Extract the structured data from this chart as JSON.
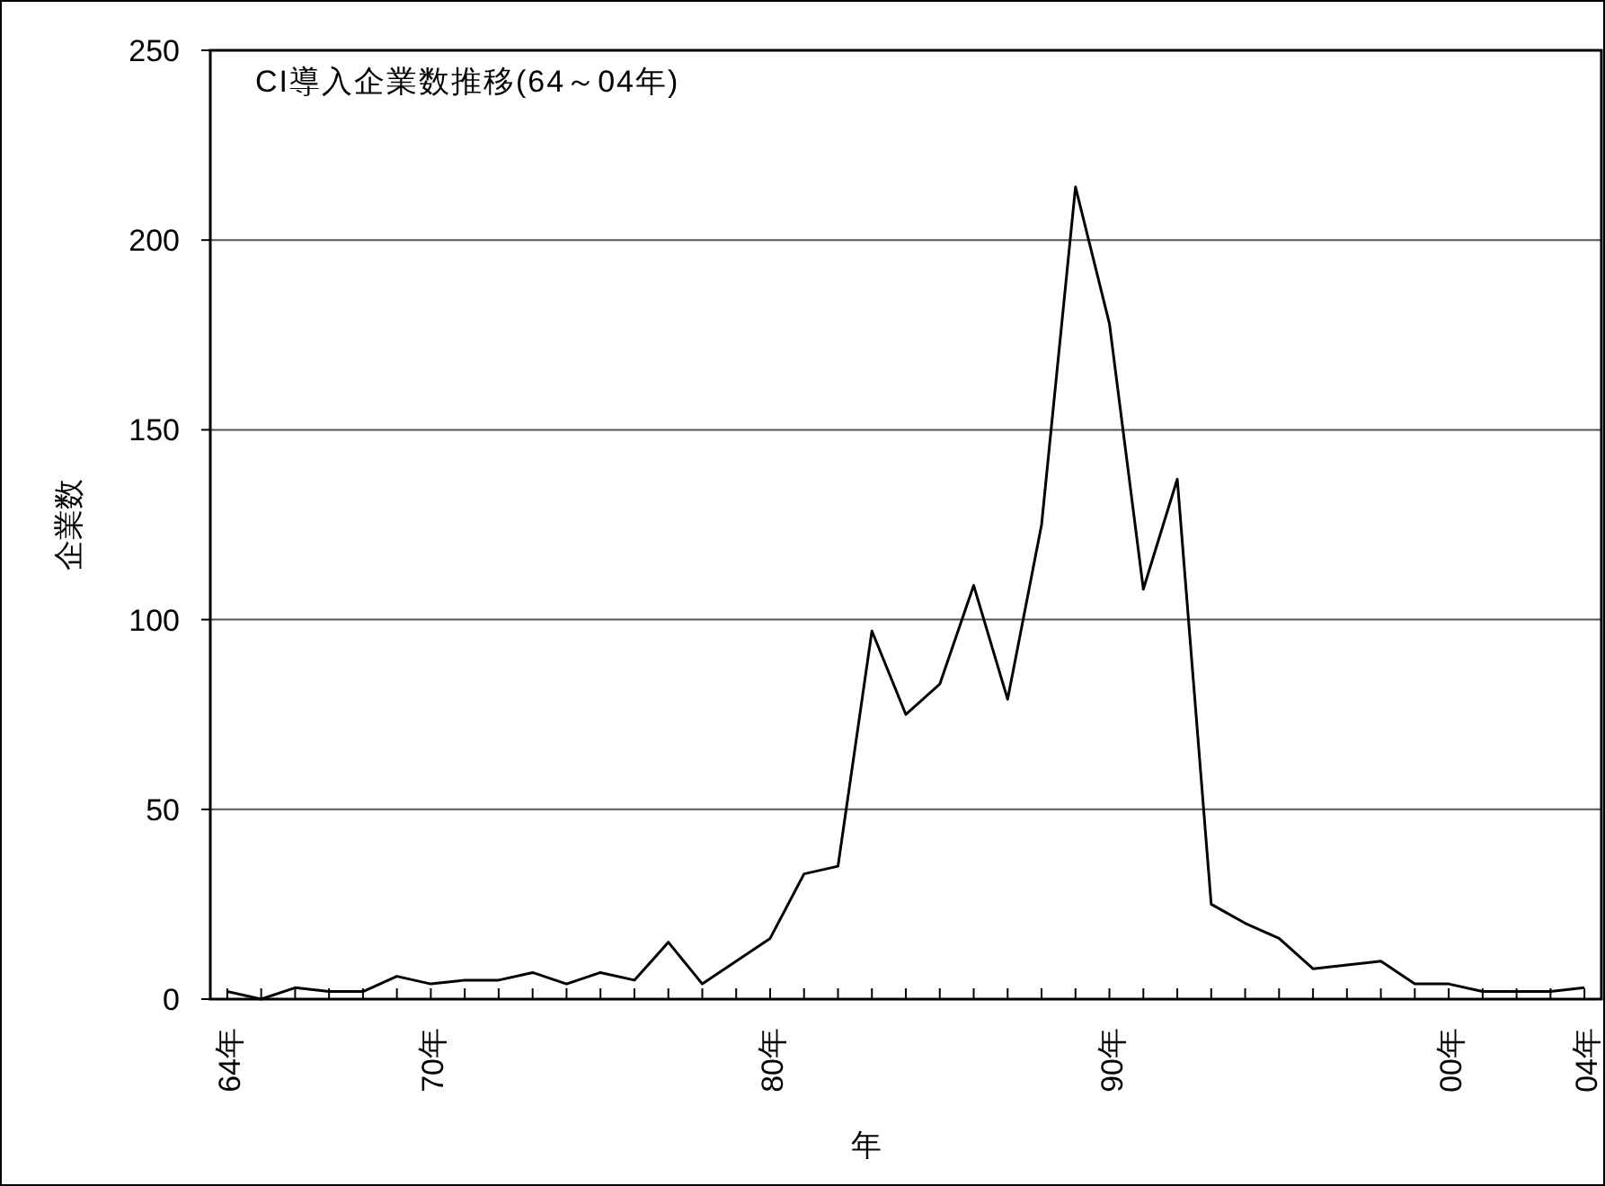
{
  "chart_data": {
    "type": "line",
    "title": "CI導入企業数推移(64～04年)",
    "xlabel": "年",
    "ylabel": "企業数",
    "categories": [
      "64年",
      null,
      null,
      null,
      null,
      null,
      "70年",
      null,
      null,
      null,
      null,
      null,
      null,
      null,
      null,
      null,
      "80年",
      null,
      null,
      null,
      null,
      null,
      null,
      null,
      null,
      null,
      "90年",
      null,
      null,
      null,
      null,
      null,
      null,
      null,
      null,
      null,
      "00年",
      null,
      null,
      null,
      "04年"
    ],
    "series": [
      {
        "color": "#000000",
        "values": [
          2,
          0,
          3,
          2,
          2,
          6,
          4,
          5,
          5,
          7,
          4,
          7,
          5,
          15,
          4,
          10,
          16,
          33,
          35,
          97,
          75,
          83,
          109,
          79,
          125,
          214,
          178,
          108,
          137,
          25,
          20,
          16,
          8,
          9,
          10,
          4,
          4,
          2,
          2,
          2,
          3
        ]
      }
    ],
    "ylim": [
      0,
      250
    ],
    "yticks": [
      0,
      50,
      100,
      150,
      200,
      250
    ],
    "grid": "y",
    "marker": "none",
    "line_style": "solid"
  }
}
